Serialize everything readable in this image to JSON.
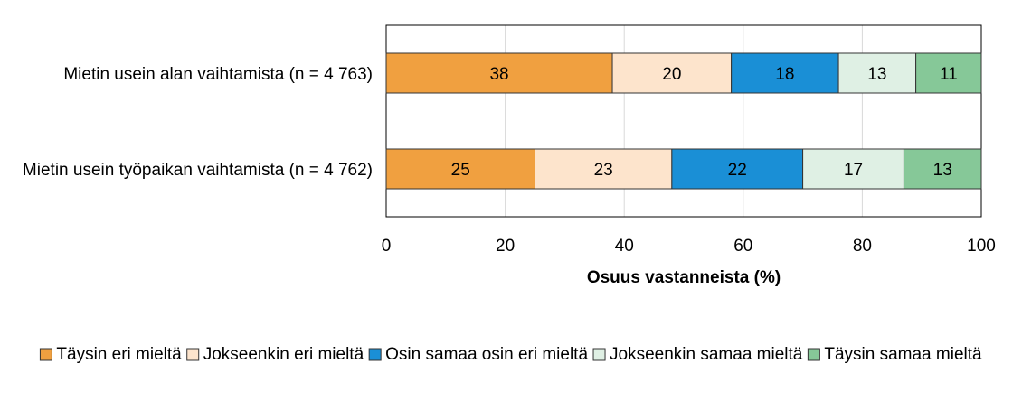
{
  "chart_data": {
    "type": "bar",
    "orientation": "horizontal",
    "stacked": true,
    "categories": [
      "Mietin usein alan vaihtamista (n = 4 763)",
      "Mietin usein työpaikan vaihtamista (n = 4 762)"
    ],
    "series": [
      {
        "name": "Täysin eri mieltä",
        "color": "#f0a040",
        "values": [
          38,
          25
        ]
      },
      {
        "name": "Jokseenkin eri mieltä",
        "color": "#fde4cc",
        "values": [
          20,
          23
        ]
      },
      {
        "name": "Osin samaa osin eri mieltä",
        "color": "#1a8fd6",
        "values": [
          18,
          22
        ]
      },
      {
        "name": "Jokseenkin samaa mieltä",
        "color": "#dff0e4",
        "values": [
          13,
          17
        ]
      },
      {
        "name": "Täysin samaa mieltä",
        "color": "#86c898",
        "values": [
          11,
          13
        ]
      }
    ],
    "xlabel": "Osuus vastanneista (%)",
    "xlim": [
      0,
      100
    ],
    "xticks": [
      "0",
      "20",
      "40",
      "60",
      "80",
      "100"
    ],
    "grid": true,
    "legend_position": "bottom"
  }
}
